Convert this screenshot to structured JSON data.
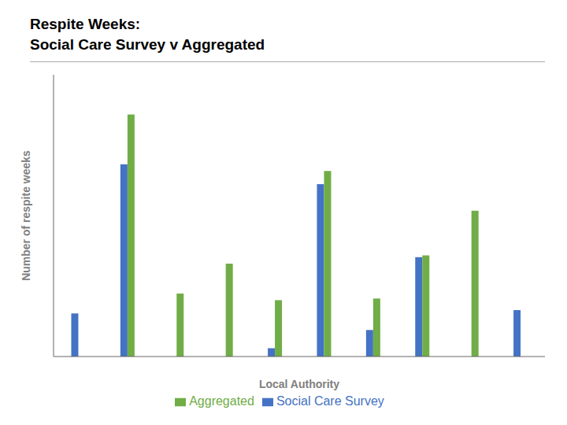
{
  "chart_data": {
    "type": "bar",
    "title": "Respite Weeks:",
    "subtitle": "Social Care Survey v Aggregated",
    "x_label": "Local Authority",
    "y_label": "Number of respite weeks",
    "categories": [
      null,
      null,
      null,
      null,
      null,
      null,
      null,
      null,
      null,
      null
    ],
    "series": [
      {
        "name": "Social Care Survey",
        "color": "#4472C4",
        "values": [
          130,
          580,
          0,
          0,
          25,
          520,
          80,
          300,
          0,
          140
        ]
      },
      {
        "name": "Aggregated",
        "color": "#70AD47",
        "values": [
          0,
          730,
          190,
          280,
          170,
          560,
          175,
          305,
          440,
          0
        ]
      }
    ],
    "ylim": [
      0,
      850
    ],
    "yticks": [],
    "grid": false,
    "legend": "bottom",
    "tick_labels": false
  }
}
